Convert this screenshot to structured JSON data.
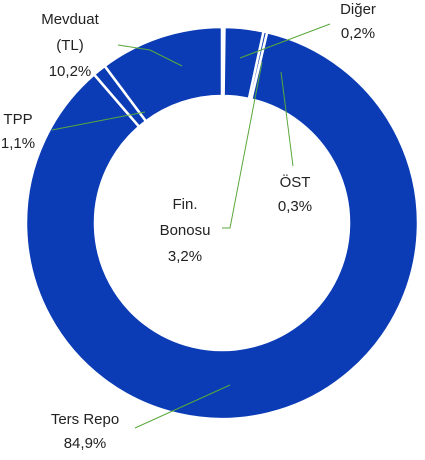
{
  "chart_data": {
    "type": "donut",
    "categories": [
      "Diğer",
      "Fin. Bonosu",
      "ÖST",
      "Ters Repo",
      "TPP",
      "Mevduat (TL)"
    ],
    "values": [
      0.2,
      3.2,
      0.3,
      84.9,
      1.1,
      10.2
    ],
    "value_labels": [
      "0,2%",
      "3,2%",
      "0,3%",
      "84,9%",
      "1,1%",
      "10,2%"
    ],
    "color": "#0b3cb5"
  }
}
